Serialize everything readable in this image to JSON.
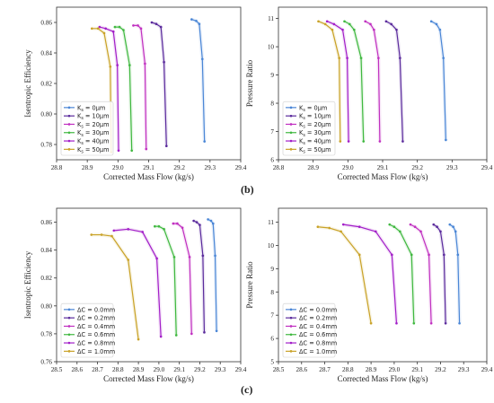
{
  "figure_labels": {
    "b": "(b)",
    "c": "(c)"
  },
  "chart_data": [
    {
      "type": "line",
      "id": "b-eff",
      "xlabel": "Corrected Mass Flow (kg/s)",
      "ylabel": "Isentropic Efficiency",
      "xlim": [
        28.8,
        29.4
      ],
      "ylim": [
        0.77,
        0.87
      ],
      "xticks": [
        "28.8",
        "28.9",
        "29.0",
        "29.1",
        "29.2",
        "29.3",
        "29.4"
      ],
      "yticks": [
        "0.78",
        "0.80",
        "0.82",
        "0.84",
        "0.86"
      ],
      "grid": false,
      "legend_position": "bottom-left",
      "series": [
        {
          "name": "Ks = 0μm",
          "name_parts": {
            "base": "K",
            "sub": "s",
            "rest": " = 0μm"
          },
          "color": "#4a86d6",
          "x": [
            29.24,
            29.255,
            29.265,
            29.275,
            29.282
          ],
          "y": [
            0.862,
            0.861,
            0.859,
            0.836,
            0.782
          ]
        },
        {
          "name": "Ks = 10μm",
          "name_parts": {
            "base": "K",
            "sub": "s",
            "rest": " = 10μm"
          },
          "color": "#5a2a9c",
          "x": [
            29.11,
            29.125,
            29.14,
            29.15,
            29.158
          ],
          "y": [
            0.86,
            0.859,
            0.857,
            0.834,
            0.779
          ]
        },
        {
          "name": "Ks = 20μm",
          "name_parts": {
            "base": "K",
            "sub": "s",
            "rest": " = 20μm"
          },
          "color": "#c02fc0",
          "x": [
            29.05,
            29.065,
            29.075,
            29.088,
            29.092
          ],
          "y": [
            0.858,
            0.858,
            0.856,
            0.833,
            0.777
          ]
        },
        {
          "name": "Ks = 30μm",
          "name_parts": {
            "base": "K",
            "sub": "s",
            "rest": " = 30μm"
          },
          "color": "#3fb83f",
          "x": [
            28.99,
            29.005,
            29.018,
            29.038,
            29.045
          ],
          "y": [
            0.857,
            0.857,
            0.855,
            0.832,
            0.776
          ]
        },
        {
          "name": "Ks = 40μm",
          "name_parts": {
            "base": "K",
            "sub": "s",
            "rest": " = 40μm"
          },
          "color": "#a21ec8",
          "x": [
            28.94,
            28.96,
            28.985,
            28.998,
            29.002
          ],
          "y": [
            0.857,
            0.856,
            0.854,
            0.832,
            0.776
          ]
        },
        {
          "name": "Ks = 50μm",
          "name_parts": {
            "base": "K",
            "sub": "s",
            "rest": " = 50μm"
          },
          "color": "#c9a227",
          "x": [
            28.915,
            28.935,
            28.955,
            28.975,
            28.978
          ],
          "y": [
            0.856,
            0.856,
            0.853,
            0.831,
            0.775
          ]
        }
      ]
    },
    {
      "type": "line",
      "id": "b-pr",
      "xlabel": "Corrected Mass Flow (kg/s)",
      "ylabel": "Pressure Ratio",
      "xlim": [
        28.8,
        29.4
      ],
      "ylim": [
        6,
        11.4
      ],
      "xticks": [
        "28.8",
        "28.9",
        "29.0",
        "29.1",
        "29.2",
        "29.3",
        "29.4"
      ],
      "yticks": [
        "6",
        "7",
        "8",
        "9",
        "10",
        "11"
      ],
      "grid": false,
      "legend_position": "bottom-left",
      "series": [
        {
          "name": "Ks = 0μm",
          "name_parts": {
            "base": "K",
            "sub": "s",
            "rest": " = 0μm"
          },
          "color": "#4a86d6",
          "x": [
            29.24,
            29.255,
            29.265,
            29.275,
            29.282
          ],
          "y": [
            10.9,
            10.8,
            10.6,
            9.6,
            6.7
          ]
        },
        {
          "name": "Ks = 10μm",
          "name_parts": {
            "base": "K",
            "sub": "s",
            "rest": " = 10μm"
          },
          "color": "#5a2a9c",
          "x": [
            29.11,
            29.125,
            29.14,
            29.15,
            29.158
          ],
          "y": [
            10.9,
            10.8,
            10.6,
            9.6,
            6.65
          ]
        },
        {
          "name": "Ks = 20μm",
          "name_parts": {
            "base": "K",
            "sub": "s",
            "rest": " = 20μm"
          },
          "color": "#c02fc0",
          "x": [
            29.05,
            29.065,
            29.075,
            29.088,
            29.092
          ],
          "y": [
            10.9,
            10.8,
            10.6,
            9.6,
            6.65
          ]
        },
        {
          "name": "Ks = 30μm",
          "name_parts": {
            "base": "K",
            "sub": "s",
            "rest": " = 30μm"
          },
          "color": "#3fb83f",
          "x": [
            28.99,
            29.005,
            29.018,
            29.038,
            29.045
          ],
          "y": [
            10.9,
            10.8,
            10.6,
            9.6,
            6.65
          ]
        },
        {
          "name": "Ks = 40μm",
          "name_parts": {
            "base": "K",
            "sub": "s",
            "rest": " = 40μm"
          },
          "color": "#a21ec8",
          "x": [
            28.94,
            28.96,
            28.985,
            28.998,
            29.002
          ],
          "y": [
            10.9,
            10.8,
            10.6,
            9.6,
            6.65
          ]
        },
        {
          "name": "Ks = 50μm",
          "name_parts": {
            "base": "K",
            "sub": "s",
            "rest": " = 50μm"
          },
          "color": "#c9a227",
          "x": [
            28.915,
            28.935,
            28.955,
            28.975,
            28.978
          ],
          "y": [
            10.9,
            10.8,
            10.6,
            9.6,
            6.65
          ]
        }
      ]
    },
    {
      "type": "line",
      "id": "c-eff",
      "xlabel": "Corrected Mass Flow (kg/s)",
      "ylabel": "Isentropic Efficiency",
      "xlim": [
        28.5,
        29.4
      ],
      "ylim": [
        0.76,
        0.87
      ],
      "xticks": [
        "28.5",
        "28.6",
        "28.7",
        "28.8",
        "28.9",
        "29.0",
        "29.1",
        "29.2",
        "29.3",
        "29.4"
      ],
      "yticks": [
        "0.76",
        "0.78",
        "0.80",
        "0.82",
        "0.84",
        "0.86"
      ],
      "grid": false,
      "legend_position": "bottom-left",
      "series": [
        {
          "name": "ΔC = 0.0mm",
          "color": "#4a86d6",
          "x": [
            29.24,
            29.255,
            29.265,
            29.275,
            29.282
          ],
          "y": [
            0.862,
            0.861,
            0.859,
            0.836,
            0.782
          ]
        },
        {
          "name": "ΔC = 0.2mm",
          "color": "#5a2a9c",
          "x": [
            29.17,
            29.185,
            29.2,
            29.215,
            29.222
          ],
          "y": [
            0.861,
            0.86,
            0.858,
            0.836,
            0.781
          ]
        },
        {
          "name": "ΔC = 0.4mm",
          "color": "#c02fc0",
          "x": [
            29.07,
            29.09,
            29.115,
            29.15,
            29.16
          ],
          "y": [
            0.859,
            0.859,
            0.856,
            0.835,
            0.78
          ]
        },
        {
          "name": "ΔC = 0.6mm",
          "color": "#3fb83f",
          "x": [
            28.98,
            29.0,
            29.025,
            29.075,
            29.085
          ],
          "y": [
            0.857,
            0.857,
            0.855,
            0.835,
            0.779
          ]
        },
        {
          "name": "ΔC = 0.8mm",
          "color": "#a21ec8",
          "x": [
            28.78,
            28.85,
            28.92,
            28.99,
            29.01
          ],
          "y": [
            0.854,
            0.855,
            0.853,
            0.834,
            0.778
          ]
        },
        {
          "name": "ΔC = 1.0mm",
          "color": "#c9a227",
          "x": [
            28.67,
            28.72,
            28.77,
            28.85,
            28.9
          ],
          "y": [
            0.851,
            0.851,
            0.85,
            0.833,
            0.776
          ]
        }
      ]
    },
    {
      "type": "line",
      "id": "c-pr",
      "xlabel": "Corrected Mass Flow (kg/s)",
      "ylabel": "Pressure Ratio",
      "xlim": [
        28.5,
        29.4
      ],
      "ylim": [
        5,
        11.6
      ],
      "xticks": [
        "28.5",
        "28.6",
        "28.7",
        "28.8",
        "28.9",
        "29.0",
        "29.1",
        "29.2",
        "29.3",
        "29.4"
      ],
      "yticks": [
        "5",
        "6",
        "7",
        "8",
        "9",
        "10",
        "11"
      ],
      "grid": false,
      "legend_position": "bottom-left",
      "series": [
        {
          "name": "ΔC = 0.0mm",
          "color": "#4a86d6",
          "x": [
            29.24,
            29.255,
            29.265,
            29.275,
            29.282
          ],
          "y": [
            10.9,
            10.8,
            10.6,
            9.6,
            6.65
          ]
        },
        {
          "name": "ΔC = 0.2mm",
          "color": "#5a2a9c",
          "x": [
            29.17,
            29.185,
            29.2,
            29.215,
            29.222
          ],
          "y": [
            10.9,
            10.8,
            10.6,
            9.6,
            6.65
          ]
        },
        {
          "name": "ΔC = 0.4mm",
          "color": "#c02fc0",
          "x": [
            29.07,
            29.09,
            29.115,
            29.15,
            29.16
          ],
          "y": [
            10.9,
            10.8,
            10.6,
            9.6,
            6.65
          ]
        },
        {
          "name": "ΔC = 0.6mm",
          "color": "#3fb83f",
          "x": [
            28.98,
            29.0,
            29.025,
            29.075,
            29.085
          ],
          "y": [
            10.9,
            10.8,
            10.6,
            9.6,
            6.65
          ]
        },
        {
          "name": "ΔC = 0.8mm",
          "color": "#a21ec8",
          "x": [
            28.78,
            28.85,
            28.92,
            28.99,
            29.01
          ],
          "y": [
            10.9,
            10.8,
            10.6,
            9.6,
            6.65
          ]
        },
        {
          "name": "ΔC = 1.0mm",
          "color": "#c9a227",
          "x": [
            28.67,
            28.72,
            28.77,
            28.85,
            28.9
          ],
          "y": [
            10.8,
            10.75,
            10.6,
            9.6,
            6.65
          ]
        }
      ]
    }
  ]
}
